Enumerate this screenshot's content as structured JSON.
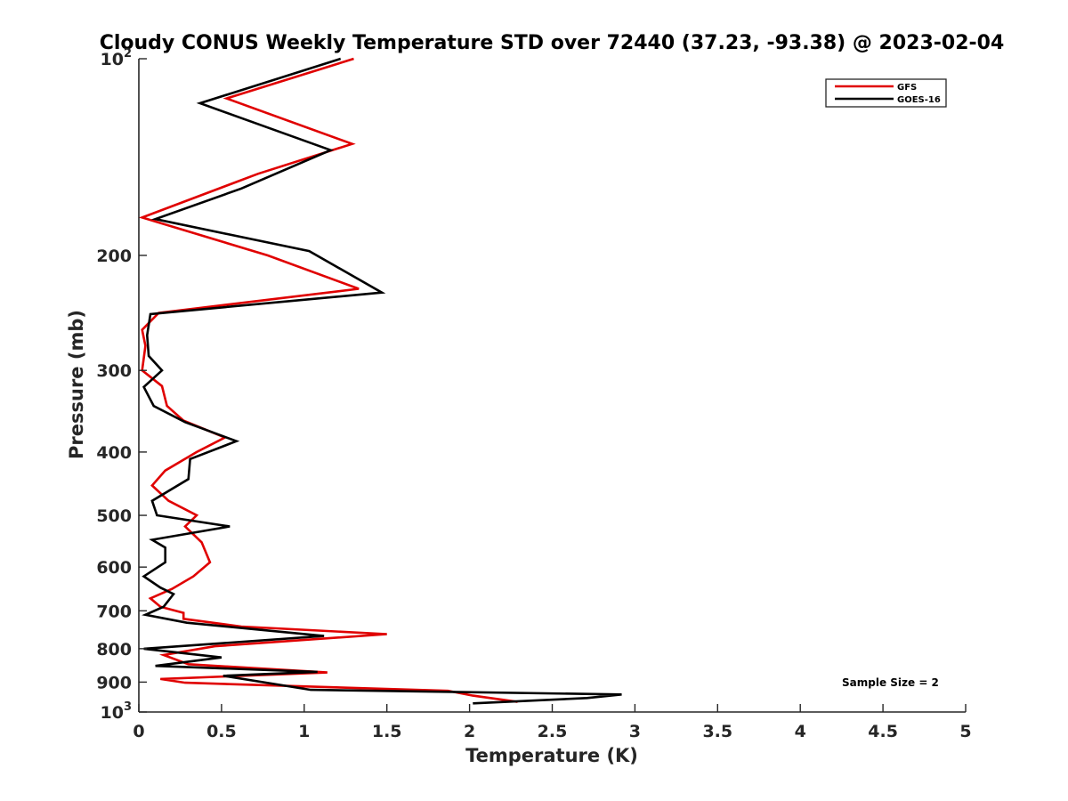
{
  "chart_data": {
    "type": "line",
    "title": "Cloudy CONUS Weekly Temperature STD over 72440 (37.23, -93.38) @ 2023-02-04",
    "xlabel": "Temperature (K)",
    "ylabel": "Pressure (mb)",
    "xlim": [
      0,
      5
    ],
    "ylim": [
      100,
      1000
    ],
    "y_scale": "log",
    "y_reversed": true,
    "x_ticks": [
      "0",
      "0.5",
      "1",
      "1.5",
      "2",
      "2.5",
      "3",
      "3.5",
      "4",
      "4.5",
      "5"
    ],
    "y_ticks": [
      {
        "value": 100,
        "base": "10",
        "exp": "2"
      },
      {
        "value": 200,
        "label": "200"
      },
      {
        "value": 300,
        "label": "300"
      },
      {
        "value": 400,
        "label": "400"
      },
      {
        "value": 500,
        "label": "500"
      },
      {
        "value": 600,
        "label": "600"
      },
      {
        "value": 700,
        "label": "700"
      },
      {
        "value": 800,
        "label": "800"
      },
      {
        "value": 900,
        "label": "900"
      },
      {
        "value": 1000,
        "base": "10",
        "exp": "3"
      }
    ],
    "grid": false,
    "legend_position": "top-right",
    "annotation": "Sample Size = 2",
    "series": [
      {
        "name": "GFS",
        "color": "#e00000",
        "points": [
          [
            1.3,
            100
          ],
          [
            0.53,
            115
          ],
          [
            1.29,
            135
          ],
          [
            0.72,
            150
          ],
          [
            0.02,
            175
          ],
          [
            0.78,
            200
          ],
          [
            1.33,
            225
          ],
          [
            0.12,
            245
          ],
          [
            0.02,
            260
          ],
          [
            0.04,
            275
          ],
          [
            0.02,
            300
          ],
          [
            0.14,
            317
          ],
          [
            0.17,
            340
          ],
          [
            0.27,
            358
          ],
          [
            0.52,
            380
          ],
          [
            0.35,
            400
          ],
          [
            0.16,
            427
          ],
          [
            0.08,
            450
          ],
          [
            0.18,
            475
          ],
          [
            0.35,
            500
          ],
          [
            0.28,
            520
          ],
          [
            0.38,
            550
          ],
          [
            0.43,
            590
          ],
          [
            0.33,
            620
          ],
          [
            0.2,
            648
          ],
          [
            0.07,
            670
          ],
          [
            0.13,
            690
          ],
          [
            0.27,
            705
          ],
          [
            0.27,
            720
          ],
          [
            0.62,
            740
          ],
          [
            1.5,
            760
          ],
          [
            0.46,
            793
          ],
          [
            0.15,
            818
          ],
          [
            0.3,
            845
          ],
          [
            1.14,
            870
          ],
          [
            0.13,
            890
          ],
          [
            0.28,
            902
          ],
          [
            1.87,
            928
          ],
          [
            2.02,
            944
          ],
          [
            2.29,
            965
          ]
        ]
      },
      {
        "name": "GOES-16",
        "color": "#000000",
        "points": [
          [
            1.22,
            100
          ],
          [
            0.37,
            117
          ],
          [
            1.16,
            138
          ],
          [
            0.62,
            158
          ],
          [
            0.1,
            176
          ],
          [
            1.03,
            197
          ],
          [
            1.47,
            228
          ],
          [
            0.07,
            246
          ],
          [
            0.05,
            265
          ],
          [
            0.06,
            285
          ],
          [
            0.14,
            300
          ],
          [
            0.03,
            318
          ],
          [
            0.09,
            340
          ],
          [
            0.28,
            360
          ],
          [
            0.59,
            385
          ],
          [
            0.31,
            410
          ],
          [
            0.3,
            440
          ],
          [
            0.08,
            475
          ],
          [
            0.11,
            500
          ],
          [
            0.55,
            520
          ],
          [
            0.08,
            545
          ],
          [
            0.16,
            560
          ],
          [
            0.16,
            590
          ],
          [
            0.03,
            620
          ],
          [
            0.13,
            645
          ],
          [
            0.21,
            660
          ],
          [
            0.15,
            690
          ],
          [
            0.04,
            710
          ],
          [
            0.29,
            730
          ],
          [
            1.12,
            765
          ],
          [
            0.03,
            800
          ],
          [
            0.5,
            825
          ],
          [
            0.1,
            850
          ],
          [
            1.08,
            868
          ],
          [
            0.51,
            880
          ],
          [
            1.04,
            925
          ],
          [
            2.92,
            940
          ],
          [
            2.71,
            952
          ],
          [
            2.02,
            970
          ]
        ]
      }
    ]
  }
}
